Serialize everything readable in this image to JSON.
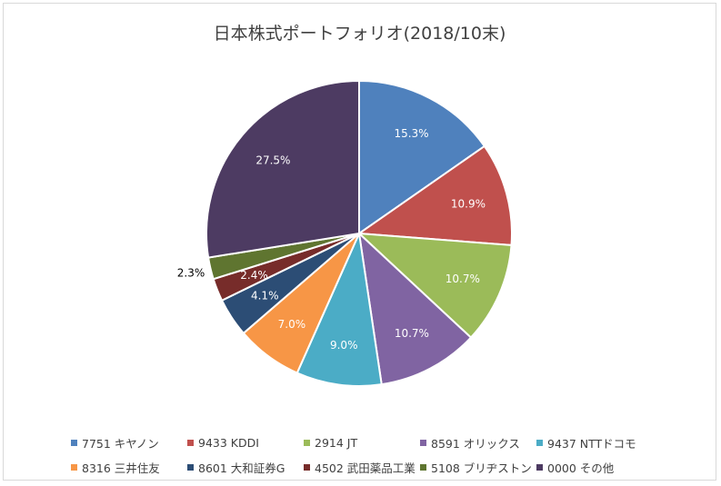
{
  "chart_data": {
    "type": "pie",
    "title": "日本株式ポートフォリオ(2018/10末)",
    "start_angle_deg": 90,
    "direction": "clockwise",
    "slices": [
      {
        "label": "7751 キヤノン",
        "value": 15.3,
        "display": "15.3%",
        "color": "#4f81bd",
        "label_color": "#ffffff"
      },
      {
        "label": "9433 KDDI",
        "value": 10.9,
        "display": "10.9%",
        "color": "#c0504d",
        "label_color": "#ffffff"
      },
      {
        "label": "2914 JT",
        "value": 10.7,
        "display": "10.7%",
        "color": "#9bbb59",
        "label_color": "#ffffff"
      },
      {
        "label": "8591 オリックス",
        "value": 10.7,
        "display": "10.7%",
        "color": "#8064a2",
        "label_color": "#ffffff"
      },
      {
        "label": "9437 NTTドコモ",
        "value": 9.0,
        "display": "9.0%",
        "color": "#4bacc6",
        "label_color": "#ffffff"
      },
      {
        "label": "8316 三井住友",
        "value": 7.0,
        "display": "7.0%",
        "color": "#f79646",
        "label_color": "#ffffff"
      },
      {
        "label": "8601 大和証券G",
        "value": 4.1,
        "display": "4.1%",
        "color": "#2c4d75",
        "label_color": "#ffffff"
      },
      {
        "label": "4502 武田薬品工業",
        "value": 2.4,
        "display": "2.4%",
        "color": "#772c2a",
        "label_color": "#ffffff"
      },
      {
        "label": "5108 ブリヂストン",
        "value": 2.3,
        "display": "2.3%",
        "color": "#5f7530",
        "label_color": "#000000"
      },
      {
        "label": "0000 その他",
        "value": 27.5,
        "display": "27.5%",
        "color": "#4d3b62",
        "label_color": "#ffffff"
      }
    ],
    "legend_position": "bottom"
  }
}
